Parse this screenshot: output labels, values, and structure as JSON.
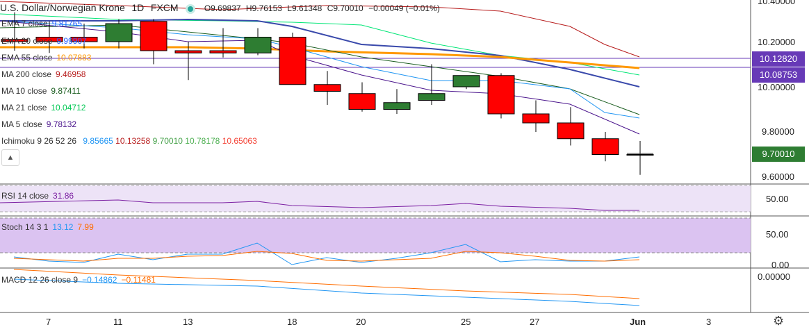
{
  "header": {
    "symbol_title": "U.S. Dollar/Norwegian Krone",
    "interval": "1D",
    "exchange": "FXCM",
    "open": "O9.69837",
    "high": "H9.76153",
    "low": "L9.61348",
    "close": "C9.70010",
    "change": "−0.00049 (−0.01%)"
  },
  "legend": [
    {
      "name": "EMA 7 close",
      "value": "9.81765",
      "color": "#2962ff"
    },
    {
      "name": "EMA 20 close",
      "value": "9.99907",
      "color": "#2962ff"
    },
    {
      "name": "EMA 55 close",
      "value": "10.07883",
      "color": "#ff9800"
    },
    {
      "name": "MA 200 close",
      "value": "9.46958",
      "color": "#b71c1c"
    },
    {
      "name": "MA 10 close",
      "value": "9.87411",
      "color": "#1b5e20"
    },
    {
      "name": "MA 21 close",
      "value": "10.04712",
      "color": "#00e676"
    },
    {
      "name": "MA 5 close",
      "value": "9.78132",
      "color": "#4a148c"
    }
  ],
  "ichimoku": {
    "name": "Ichimoku 9 26 52 26",
    "values": [
      "9.85665",
      "10.13258",
      "9.70010",
      "10.78178",
      "10.65063"
    ],
    "colors": [
      "#2196f3",
      "#b71c1c",
      "#43a047",
      "#4caf50",
      "#f44336"
    ]
  },
  "rsi": {
    "name": "RSI 14 close",
    "value": "31.86",
    "color": "#7b1fa2"
  },
  "stoch": {
    "name": "Stoch 14 3 1",
    "k": "13.12",
    "d": "7.99",
    "k_color": "#2196f3",
    "d_color": "#ff6d00"
  },
  "macd": {
    "name": "MACD 12 26 close 9",
    "macd": "−0.14862",
    "signal": "−0.11481",
    "macd_color": "#2196f3",
    "signal_color": "#ff6d00"
  },
  "price_axis": [
    "10.40000",
    "10.20000",
    "10.00000",
    "9.80000",
    "9.60000"
  ],
  "price_tags": [
    {
      "label": "10.12820",
      "color": "#673ab7"
    },
    {
      "label": "10.08753",
      "color": "#673ab7"
    },
    {
      "label": "9.70010",
      "color": "#2e7d32"
    }
  ],
  "rsi_axis": [
    "50.00"
  ],
  "stoch_axis": [
    "50.00",
    "0.00"
  ],
  "macd_axis": [
    "0.00000"
  ],
  "date_axis": [
    "7",
    "11",
    "13",
    "18",
    "20",
    "25",
    "27",
    "Jun",
    "3"
  ],
  "chart_data": {
    "type": "candlestick",
    "candles": [
      {
        "o": 10.21,
        "h": 10.33,
        "l": 10.16,
        "c": 10.2
      },
      {
        "o": 10.22,
        "h": 10.29,
        "l": 10.15,
        "c": 10.2
      },
      {
        "o": 10.22,
        "h": 10.28,
        "l": 10.17,
        "c": 10.2
      },
      {
        "o": 10.2,
        "h": 10.3,
        "l": 10.17,
        "c": 10.28
      },
      {
        "o": 10.29,
        "h": 10.3,
        "l": 10.1,
        "c": 10.16
      },
      {
        "o": 10.16,
        "h": 10.2,
        "l": 10.03,
        "c": 10.15
      },
      {
        "o": 10.16,
        "h": 10.26,
        "l": 10.13,
        "c": 10.15
      },
      {
        "o": 10.15,
        "h": 10.26,
        "l": 10.14,
        "c": 10.22
      },
      {
        "o": 10.22,
        "h": 10.24,
        "l": 10.01,
        "c": 10.01
      },
      {
        "o": 10.01,
        "h": 10.07,
        "l": 9.92,
        "c": 9.98
      },
      {
        "o": 9.97,
        "h": 10.02,
        "l": 9.89,
        "c": 9.9
      },
      {
        "o": 9.9,
        "h": 9.99,
        "l": 9.88,
        "c": 9.93
      },
      {
        "o": 9.94,
        "h": 10.1,
        "l": 9.92,
        "c": 9.97
      },
      {
        "o": 10.0,
        "h": 10.05,
        "l": 9.99,
        "c": 10.05
      },
      {
        "o": 10.05,
        "h": 10.06,
        "l": 9.86,
        "c": 9.88
      },
      {
        "o": 9.88,
        "h": 9.94,
        "l": 9.8,
        "c": 9.84
      },
      {
        "o": 9.84,
        "h": 9.91,
        "l": 9.74,
        "c": 9.77
      },
      {
        "o": 9.77,
        "h": 9.8,
        "l": 9.67,
        "c": 9.7
      },
      {
        "o": 9.7,
        "h": 9.76,
        "l": 9.61,
        "c": 9.7
      }
    ],
    "xlim": [
      0,
      20
    ],
    "ylim": [
      9.55,
      10.43
    ]
  }
}
